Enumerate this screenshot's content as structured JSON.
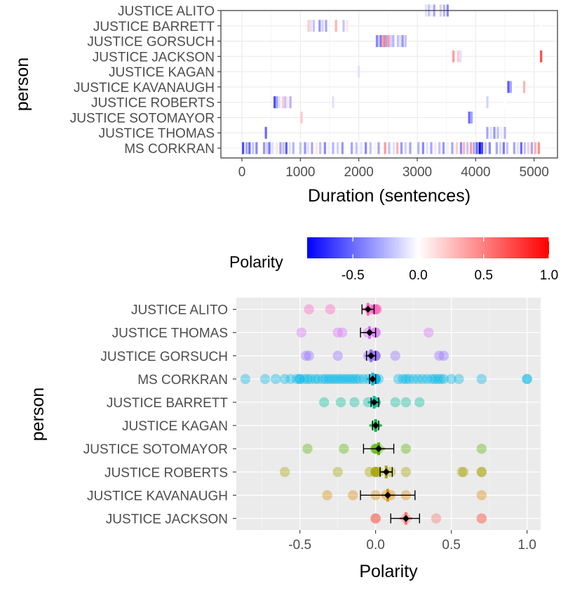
{
  "chart_data": [
    {
      "type": "heatmap",
      "title": "",
      "xlabel": "Duration (sentences)",
      "ylabel": "person",
      "xlim": [
        -360,
        5400
      ],
      "x_ticks": [
        0,
        1000,
        2000,
        3000,
        4000,
        5000
      ],
      "x_tick_labels": [
        "0",
        "1000",
        "2000",
        "3000",
        "4000",
        "5000"
      ],
      "categories": [
        "JUSTICE ALITO",
        "JUSTICE BARRETT",
        "JUSTICE GORSUCH",
        "JUSTICE JACKSON",
        "JUSTICE KAGAN",
        "JUSTICE KAVANAUGH",
        "JUSTICE ROBERTS",
        "JUSTICE SOTOMAYOR",
        "JUSTICE THOMAS",
        "MS CORKRAN"
      ],
      "color_scale": {
        "low": "#0000ff",
        "mid": "#ffffff",
        "high": "#ff0000",
        "domain": [
          -0.85,
          1.0
        ]
      },
      "series": [
        {
          "name": "JUSTICE ALITO",
          "segments": [
            [
              3150,
              -0.1
            ],
            [
              3200,
              -0.2
            ],
            [
              3240,
              -0.05
            ],
            [
              3290,
              -0.3
            ],
            [
              3340,
              0.0
            ],
            [
              3400,
              -0.15
            ],
            [
              3460,
              -0.25
            ],
            [
              3520,
              -0.4
            ]
          ]
        },
        {
          "name": "JUSTICE BARRETT",
          "segments": [
            [
              1140,
              0.2
            ],
            [
              1180,
              -0.1
            ],
            [
              1230,
              -0.2
            ],
            [
              1280,
              0.0
            ],
            [
              1330,
              -0.35
            ],
            [
              1380,
              -0.15
            ],
            [
              1440,
              -0.3
            ],
            [
              1610,
              0.3
            ],
            [
              1690,
              0.0
            ],
            [
              1740,
              -0.2
            ],
            [
              1800,
              0.1
            ],
            [
              5120,
              0.0
            ]
          ]
        },
        {
          "name": "JUSTICE GORSUCH",
          "segments": [
            [
              2310,
              -0.4
            ],
            [
              2350,
              -0.2
            ],
            [
              2380,
              -0.45
            ],
            [
              2410,
              0.35
            ],
            [
              2440,
              0.5
            ],
            [
              2470,
              -0.3
            ],
            [
              2510,
              0.4
            ],
            [
              2550,
              -0.15
            ],
            [
              2590,
              -0.25
            ],
            [
              2630,
              0.0
            ],
            [
              2670,
              -0.2
            ],
            [
              2710,
              -0.1
            ],
            [
              2750,
              -0.35
            ],
            [
              2800,
              -0.2
            ]
          ]
        },
        {
          "name": "JUSTICE JACKSON",
          "segments": [
            [
              3620,
              0.4
            ],
            [
              3660,
              0.0
            ],
            [
              3700,
              0.2
            ],
            [
              3740,
              -0.1
            ],
            [
              5080,
              0.0
            ],
            [
              5120,
              0.7
            ]
          ]
        },
        {
          "name": "JUSTICE KAGAN",
          "segments": [
            [
              2000,
              -0.1
            ]
          ]
        },
        {
          "name": "JUSTICE KAVANAUGH",
          "segments": [
            [
              4560,
              -0.55
            ],
            [
              4600,
              -0.3
            ],
            [
              4640,
              0.0
            ],
            [
              4830,
              0.3
            ]
          ]
        },
        {
          "name": "JUSTICE ROBERTS",
          "segments": [
            [
              560,
              -0.6
            ],
            [
              600,
              -0.3
            ],
            [
              640,
              -0.1
            ],
            [
              700,
              0.2
            ],
            [
              740,
              -0.2
            ],
            [
              780,
              0.1
            ],
            [
              830,
              -0.25
            ],
            [
              1560,
              -0.1
            ],
            [
              4200,
              -0.15
            ],
            [
              4500,
              0.0
            ]
          ]
        },
        {
          "name": "JUSTICE SOTOMAYOR",
          "segments": [
            [
              1020,
              0.2
            ],
            [
              3890,
              -0.5
            ],
            [
              3930,
              -0.3
            ]
          ]
        },
        {
          "name": "JUSTICE THOMAS",
          "segments": [
            [
              410,
              -0.5
            ],
            [
              4200,
              -0.3
            ],
            [
              4260,
              -0.1
            ],
            [
              4320,
              -0.35
            ],
            [
              4380,
              -0.2
            ],
            [
              4440,
              -0.05
            ],
            [
              4500,
              -0.25
            ]
          ]
        },
        {
          "name": "MS CORKRAN",
          "segments": [
            [
              20,
              -0.6
            ],
            [
              80,
              -0.3
            ],
            [
              130,
              -0.5
            ],
            [
              190,
              -0.2
            ],
            [
              250,
              -0.4
            ],
            [
              310,
              0.0
            ],
            [
              380,
              -0.35
            ],
            [
              430,
              -0.15
            ],
            [
              470,
              -0.45
            ],
            [
              520,
              -0.1
            ],
            [
              600,
              0.1
            ],
            [
              660,
              -0.3
            ],
            [
              710,
              -0.2
            ],
            [
              760,
              -0.55
            ],
            [
              820,
              -0.1
            ],
            [
              880,
              -0.25
            ],
            [
              940,
              0.0
            ],
            [
              1000,
              -0.2
            ],
            [
              1080,
              -0.35
            ],
            [
              1130,
              -0.1
            ],
            [
              1200,
              -0.3
            ],
            [
              1280,
              0.1
            ],
            [
              1340,
              -0.2
            ],
            [
              1420,
              -0.4
            ],
            [
              1480,
              -0.05
            ],
            [
              1560,
              -0.25
            ],
            [
              1640,
              -0.15
            ],
            [
              1720,
              -0.35
            ],
            [
              1800,
              0.0
            ],
            [
              1880,
              -0.3
            ],
            [
              1960,
              -0.2
            ],
            [
              2040,
              -0.1
            ],
            [
              2120,
              -0.4
            ],
            [
              2200,
              -0.2
            ],
            [
              2280,
              0.05
            ],
            [
              2340,
              -0.3
            ],
            [
              2450,
              0.4
            ],
            [
              2520,
              -0.2
            ],
            [
              2600,
              -0.1
            ],
            [
              2660,
              0.3
            ],
            [
              2730,
              -0.35
            ],
            [
              2800,
              -0.15
            ],
            [
              2880,
              -0.3
            ],
            [
              2950,
              0.0
            ],
            [
              3020,
              -0.25
            ],
            [
              3100,
              -0.4
            ],
            [
              3170,
              -0.1
            ],
            [
              3240,
              -0.3
            ],
            [
              3310,
              0.1
            ],
            [
              3380,
              -0.2
            ],
            [
              3450,
              -0.35
            ],
            [
              3520,
              -0.05
            ],
            [
              3600,
              -0.3
            ],
            [
              3680,
              0.2
            ],
            [
              3750,
              -0.4
            ],
            [
              3800,
              0.3
            ],
            [
              3860,
              -0.2
            ],
            [
              3920,
              0.4
            ],
            [
              3970,
              -0.3
            ],
            [
              4020,
              -0.5
            ],
            [
              4070,
              -0.85
            ],
            [
              4110,
              -0.6
            ],
            [
              4170,
              -0.2
            ],
            [
              4240,
              -0.4
            ],
            [
              4300,
              0.0
            ],
            [
              4360,
              -0.3
            ],
            [
              4420,
              -0.15
            ],
            [
              4480,
              -0.45
            ],
            [
              4540,
              -0.2
            ],
            [
              4600,
              0.0
            ],
            [
              4660,
              -0.3
            ],
            [
              4720,
              -0.1
            ],
            [
              4780,
              -0.5
            ],
            [
              4840,
              -0.2
            ],
            [
              4900,
              0.2
            ],
            [
              4960,
              -0.3
            ],
            [
              5020,
              0.3
            ],
            [
              5080,
              0.45
            ]
          ]
        }
      ]
    },
    {
      "type": "scatter",
      "title": "",
      "xlabel": "Polarity",
      "ylabel": "person",
      "xlim": [
        -0.92,
        1.09
      ],
      "x_ticks": [
        -0.5,
        0.0,
        0.5,
        1.0
      ],
      "x_tick_labels": [
        "-0.5",
        "0.0",
        "0.5",
        "1.0"
      ],
      "grid": true,
      "legend": {
        "title": "Polarity",
        "position": "top",
        "ticks": [
          -0.5,
          0.0,
          0.5,
          1.0
        ],
        "tick_labels": [
          "-0.5",
          "0.0",
          "0.5",
          "1.0"
        ],
        "range": [
          -0.85,
          1.0
        ]
      },
      "categories": [
        "JUSTICE ALITO",
        "JUSTICE THOMAS",
        "JUSTICE GORSUCH",
        "MS CORKRAN",
        "JUSTICE BARRETT",
        "JUSTICE KAGAN",
        "JUSTICE SOTOMAYOR",
        "JUSTICE ROBERTS",
        "JUSTICE KAVANAUGH",
        "JUSTICE JACKSON"
      ],
      "series": [
        {
          "name": "JUSTICE ALITO",
          "color": "#FF61C3",
          "points": [
            -0.44,
            -0.3,
            -0.04,
            -0.02,
            0.0,
            0.0,
            0.0,
            0.0,
            0.01
          ],
          "mean": -0.05,
          "ci": [
            -0.09,
            -0.01
          ]
        },
        {
          "name": "JUSTICE THOMAS",
          "color": "#DB72FB",
          "points": [
            -0.49,
            -0.25,
            -0.22,
            -0.05,
            0.0,
            0.0,
            0.0,
            0.35
          ],
          "mean": -0.04,
          "ci": [
            -0.1,
            0.0
          ]
        },
        {
          "name": "JUSTICE GORSUCH",
          "color": "#926DFF",
          "points": [
            -0.46,
            -0.44,
            -0.25,
            -0.05,
            -0.02,
            0.0,
            0.0,
            0.0,
            0.0,
            0.13,
            0.42,
            0.45
          ],
          "mean": -0.03,
          "ci": [
            -0.06,
            0.0
          ]
        },
        {
          "name": "MS CORKRAN",
          "color": "#00B8E7",
          "points": [
            -0.86,
            -0.73,
            -0.66,
            -0.6,
            -0.56,
            -0.52,
            -0.5,
            -0.5,
            -0.47,
            -0.45,
            -0.43,
            -0.4,
            -0.38,
            -0.35,
            -0.33,
            -0.31,
            -0.29,
            -0.27,
            -0.25,
            -0.23,
            -0.21,
            -0.19,
            -0.17,
            -0.15,
            -0.13,
            -0.11,
            -0.08,
            -0.05,
            -0.02,
            0.0,
            0.0,
            0.0,
            0.0,
            0.0,
            0.0,
            0.0,
            0.02,
            0.15,
            0.18,
            0.2,
            0.22,
            0.25,
            0.28,
            0.31,
            0.34,
            0.37,
            0.39,
            0.41,
            0.43,
            0.45,
            0.5,
            0.55,
            0.7,
            1.0,
            1.0
          ],
          "mean": -0.02,
          "ci": [
            -0.04,
            0.0
          ]
        },
        {
          "name": "JUSTICE BARRETT",
          "color": "#00C19F",
          "points": [
            -0.34,
            -0.23,
            -0.14,
            -0.05,
            0.0,
            0.0,
            0.0,
            0.0,
            0.13,
            0.2,
            0.29
          ],
          "mean": -0.01,
          "ci": [
            -0.03,
            0.02
          ]
        },
        {
          "name": "JUSTICE KAGAN",
          "color": "#00BA38",
          "points": [
            0.0
          ],
          "mean": 0.0,
          "ci": [
            -0.02,
            0.02
          ]
        },
        {
          "name": "JUSTICE SOTOMAYOR",
          "color": "#53B400",
          "points": [
            -0.45,
            -0.21,
            0.0,
            0.0,
            0.0,
            0.02,
            0.2,
            0.7
          ],
          "mean": 0.02,
          "ci": [
            -0.08,
            0.12
          ]
        },
        {
          "name": "JUSTICE ROBERTS",
          "color": "#A5A300",
          "points": [
            -0.6,
            -0.25,
            -0.04,
            0.0,
            0.0,
            0.0,
            0.0,
            0.02,
            0.1,
            0.2,
            0.57,
            0.58,
            0.7,
            0.7
          ],
          "mean": 0.07,
          "ci": [
            0.03,
            0.11
          ]
        },
        {
          "name": "JUSTICE KAVANAUGH",
          "color": "#DE8C00",
          "points": [
            -0.32,
            -0.15,
            0.0,
            0.07,
            0.1,
            0.2,
            0.7
          ],
          "mean": 0.08,
          "ci": [
            -0.1,
            0.26
          ]
        },
        {
          "name": "JUSTICE JACKSON",
          "color": "#F8766D",
          "points": [
            0.0,
            0.0,
            0.0,
            0.2,
            0.4,
            0.7,
            0.7
          ],
          "mean": 0.2,
          "ci": [
            0.1,
            0.29
          ]
        }
      ]
    }
  ]
}
